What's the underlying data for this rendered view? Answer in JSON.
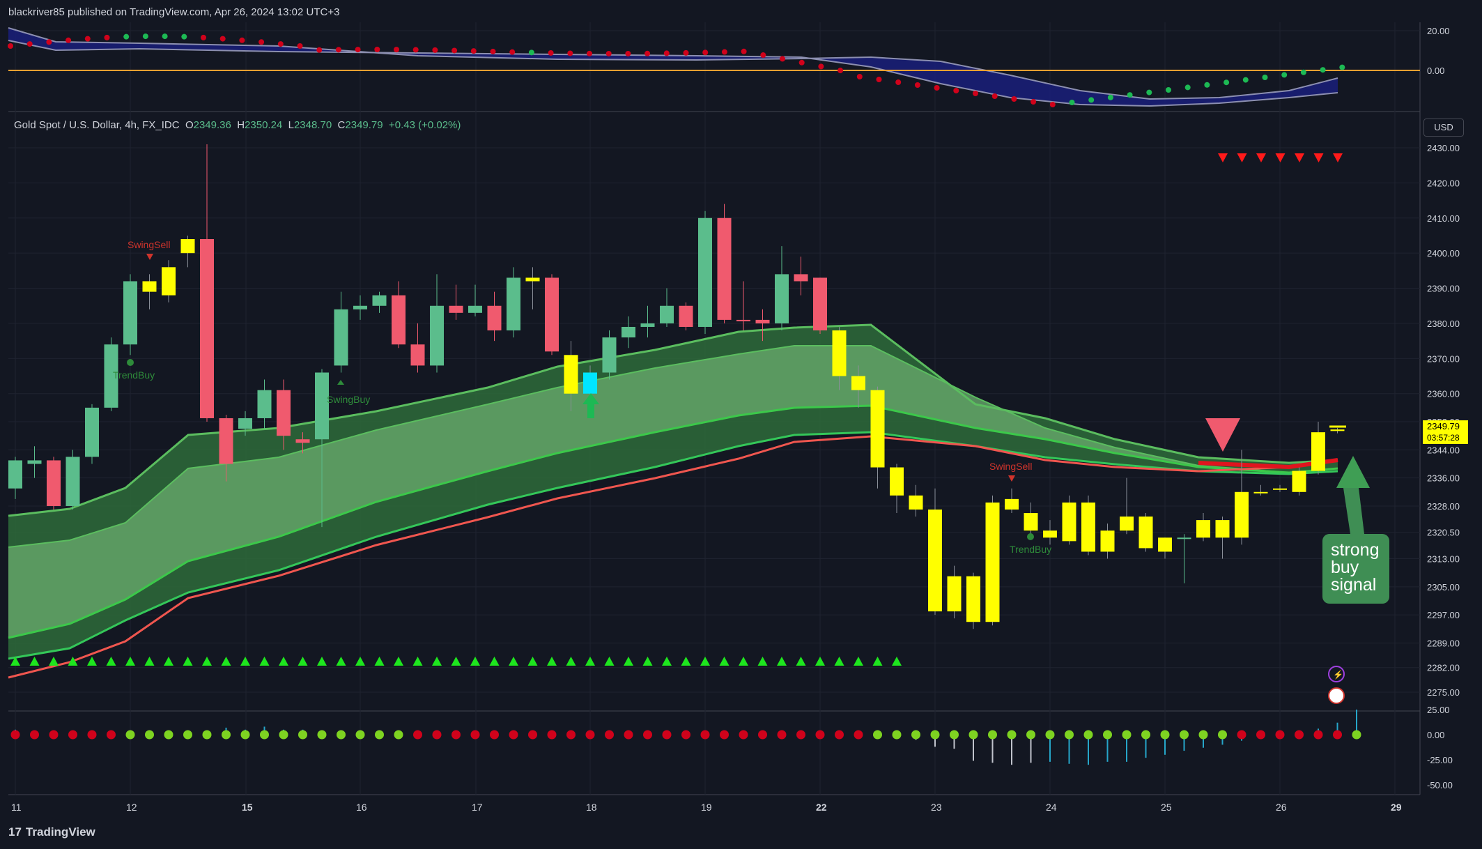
{
  "header": {
    "publish_line": "blackriver85 published on TradingView.com, Apr 26, 2024 13:02 UTC+3"
  },
  "symbol": {
    "name": "Gold Spot / U.S. Dollar, 4h, FX_IDC",
    "o_label": "O",
    "o": "2349.36",
    "h_label": "H",
    "h": "2350.24",
    "l_label": "L",
    "l": "2348.70",
    "c_label": "C",
    "c": "2349.79",
    "change": "+0.43 (+0.02%)"
  },
  "currency_button": "USD",
  "price_tag": {
    "price": "2349.79",
    "countdown": "03:57:28"
  },
  "annotation": {
    "lines": [
      "strong",
      "buy",
      "signal"
    ]
  },
  "footer": {
    "brand": "TradingView",
    "logo_glyph": "17"
  },
  "colors": {
    "up": "#5bbd8c",
    "down": "#f05a6e",
    "yellow": "#ffff00",
    "cyan": "#00e5ff",
    "band_light": "#66a86c",
    "band_dark": "#2e6b3a",
    "red_line": "#f0564f",
    "green_line": "#34c759",
    "background": "#131722"
  },
  "chart_data": [
    {
      "type": "candlestick",
      "title": "Gold Spot / U.S. Dollar, 4h, FX_IDC",
      "x_tick_labels": [
        "11",
        "12",
        "15",
        "16",
        "17",
        "18",
        "19",
        "22",
        "23",
        "24",
        "25",
        "26",
        "29"
      ],
      "y_tick_labels": [
        "2430.00",
        "2420.00",
        "2410.00",
        "2400.00",
        "2390.00",
        "2380.00",
        "2370.00",
        "2360.00",
        "2352.00",
        "2344.00",
        "2336.00",
        "2328.00",
        "2320.50",
        "2313.00",
        "2305.00",
        "2297.00",
        "2289.00",
        "2282.00",
        "2275.00"
      ],
      "ylim": [
        2272,
        2438
      ],
      "candles": [
        {
          "o": 2333,
          "h": 2342,
          "l": 2330,
          "c": 2341,
          "color": "up"
        },
        {
          "o": 2340,
          "h": 2345,
          "l": 2336,
          "c": 2341,
          "color": "up"
        },
        {
          "o": 2341,
          "h": 2342,
          "l": 2327,
          "c": 2328,
          "color": "down"
        },
        {
          "o": 2328,
          "h": 2344,
          "l": 2327,
          "c": 2342,
          "color": "up"
        },
        {
          "o": 2342,
          "h": 2357,
          "l": 2340,
          "c": 2356,
          "color": "up"
        },
        {
          "o": 2356,
          "h": 2376,
          "l": 2355,
          "c": 2374,
          "color": "up"
        },
        {
          "o": 2374,
          "h": 2394,
          "l": 2371,
          "c": 2392,
          "color": "up"
        },
        {
          "o": 2389,
          "h": 2394,
          "l": 2384,
          "c": 2392,
          "color": "yellow"
        },
        {
          "o": 2388,
          "h": 2398,
          "l": 2386,
          "c": 2396,
          "color": "yellow"
        },
        {
          "o": 2400,
          "h": 2405,
          "l": 2396,
          "c": 2404,
          "color": "yellow"
        },
        {
          "o": 2404,
          "h": 2431,
          "l": 2352,
          "c": 2353,
          "color": "down"
        },
        {
          "o": 2353,
          "h": 2354,
          "l": 2335,
          "c": 2340,
          "color": "down"
        },
        {
          "o": 2350,
          "h": 2355,
          "l": 2348,
          "c": 2353,
          "color": "up"
        },
        {
          "o": 2353,
          "h": 2364,
          "l": 2350,
          "c": 2361,
          "color": "up"
        },
        {
          "o": 2361,
          "h": 2364,
          "l": 2344,
          "c": 2348,
          "color": "down"
        },
        {
          "o": 2347,
          "h": 2349,
          "l": 2343,
          "c": 2346,
          "color": "down"
        },
        {
          "o": 2347,
          "h": 2367,
          "l": 2322,
          "c": 2366,
          "color": "up"
        },
        {
          "o": 2368,
          "h": 2389,
          "l": 2366,
          "c": 2384,
          "color": "up"
        },
        {
          "o": 2384,
          "h": 2388,
          "l": 2381,
          "c": 2385,
          "color": "up"
        },
        {
          "o": 2385,
          "h": 2389,
          "l": 2383,
          "c": 2388,
          "color": "up"
        },
        {
          "o": 2388,
          "h": 2392,
          "l": 2373,
          "c": 2374,
          "color": "down"
        },
        {
          "o": 2374,
          "h": 2380,
          "l": 2366,
          "c": 2368,
          "color": "down"
        },
        {
          "o": 2368,
          "h": 2394,
          "l": 2366,
          "c": 2385,
          "color": "up"
        },
        {
          "o": 2385,
          "h": 2391,
          "l": 2381,
          "c": 2383,
          "color": "down"
        },
        {
          "o": 2383,
          "h": 2391,
          "l": 2382,
          "c": 2385,
          "color": "up"
        },
        {
          "o": 2385,
          "h": 2389,
          "l": 2375,
          "c": 2378,
          "color": "down"
        },
        {
          "o": 2378,
          "h": 2396,
          "l": 2376,
          "c": 2393,
          "color": "up"
        },
        {
          "o": 2392,
          "h": 2396,
          "l": 2384,
          "c": 2393,
          "color": "yellow"
        },
        {
          "o": 2393,
          "h": 2394,
          "l": 2371,
          "c": 2372,
          "color": "down"
        },
        {
          "o": 2371,
          "h": 2375,
          "l": 2355,
          "c": 2360,
          "color": "yellow"
        },
        {
          "o": 2366,
          "h": 2368,
          "l": 2359,
          "c": 2360,
          "color": "cyan"
        },
        {
          "o": 2366,
          "h": 2378,
          "l": 2364,
          "c": 2376,
          "color": "up"
        },
        {
          "o": 2376,
          "h": 2382,
          "l": 2373,
          "c": 2379,
          "color": "up"
        },
        {
          "o": 2379,
          "h": 2385,
          "l": 2376,
          "c": 2380,
          "color": "up"
        },
        {
          "o": 2380,
          "h": 2390,
          "l": 2379,
          "c": 2385,
          "color": "up"
        },
        {
          "o": 2385,
          "h": 2386,
          "l": 2378,
          "c": 2379,
          "color": "down"
        },
        {
          "o": 2379,
          "h": 2412,
          "l": 2377,
          "c": 2410,
          "color": "up"
        },
        {
          "o": 2410,
          "h": 2414,
          "l": 2380,
          "c": 2381,
          "color": "down"
        },
        {
          "o": 2381,
          "h": 2392,
          "l": 2378,
          "c": 2381,
          "color": "down"
        },
        {
          "o": 2381,
          "h": 2384,
          "l": 2375,
          "c": 2380,
          "color": "down"
        },
        {
          "o": 2380,
          "h": 2402,
          "l": 2378,
          "c": 2394,
          "color": "up"
        },
        {
          "o": 2394,
          "h": 2399,
          "l": 2388,
          "c": 2392,
          "color": "down"
        },
        {
          "o": 2393,
          "h": 2393,
          "l": 2377,
          "c": 2378,
          "color": "down"
        },
        {
          "o": 2378,
          "h": 2379,
          "l": 2361,
          "c": 2365,
          "color": "yellow"
        },
        {
          "o": 2365,
          "h": 2368,
          "l": 2356,
          "c": 2361,
          "color": "yellow"
        },
        {
          "o": 2361,
          "h": 2362,
          "l": 2333,
          "c": 2339,
          "color": "yellow"
        },
        {
          "o": 2339,
          "h": 2340,
          "l": 2326,
          "c": 2331,
          "color": "yellow"
        },
        {
          "o": 2331,
          "h": 2334,
          "l": 2325,
          "c": 2327,
          "color": "yellow"
        },
        {
          "o": 2327,
          "h": 2333,
          "l": 2297,
          "c": 2298,
          "color": "yellow"
        },
        {
          "o": 2298,
          "h": 2311,
          "l": 2296,
          "c": 2308,
          "color": "yellow"
        },
        {
          "o": 2308,
          "h": 2309,
          "l": 2293,
          "c": 2295,
          "color": "yellow"
        },
        {
          "o": 2295,
          "h": 2331,
          "l": 2294,
          "c": 2329,
          "color": "yellow"
        },
        {
          "o": 2330,
          "h": 2333,
          "l": 2326,
          "c": 2327,
          "color": "yellow"
        },
        {
          "o": 2326,
          "h": 2329,
          "l": 2320,
          "c": 2321,
          "color": "yellow"
        },
        {
          "o": 2321,
          "h": 2324,
          "l": 2317,
          "c": 2319,
          "color": "yellow"
        },
        {
          "o": 2318,
          "h": 2331,
          "l": 2317,
          "c": 2329,
          "color": "yellow"
        },
        {
          "o": 2329,
          "h": 2331,
          "l": 2314,
          "c": 2315,
          "color": "yellow"
        },
        {
          "o": 2315,
          "h": 2323,
          "l": 2313,
          "c": 2321,
          "color": "yellow"
        },
        {
          "o": 2321,
          "h": 2336,
          "l": 2320,
          "c": 2325,
          "color": "yellow"
        },
        {
          "o": 2325,
          "h": 2326,
          "l": 2315,
          "c": 2316,
          "color": "yellow"
        },
        {
          "o": 2315,
          "h": 2319,
          "l": 2313,
          "c": 2319,
          "color": "yellow"
        },
        {
          "o": 2319,
          "h": 2320,
          "l": 2306,
          "c": 2319,
          "color": "up"
        },
        {
          "o": 2319,
          "h": 2326,
          "l": 2318,
          "c": 2324,
          "color": "yellow"
        },
        {
          "o": 2324,
          "h": 2325,
          "l": 2313,
          "c": 2319,
          "color": "yellow"
        },
        {
          "o": 2319,
          "h": 2344,
          "l": 2317,
          "c": 2332,
          "color": "yellow"
        },
        {
          "o": 2332,
          "h": 2334,
          "l": 2331,
          "c": 2332,
          "color": "yellow"
        },
        {
          "o": 2333,
          "h": 2334,
          "l": 2332,
          "c": 2333,
          "color": "yellow"
        },
        {
          "o": 2332,
          "h": 2339,
          "l": 2331,
          "c": 2338,
          "color": "yellow"
        },
        {
          "o": 2338,
          "h": 2352,
          "l": 2337,
          "c": 2349,
          "color": "yellow"
        },
        {
          "o": 2349.36,
          "h": 2350.24,
          "l": 2348.7,
          "c": 2349.79,
          "color": "yellow"
        }
      ],
      "text_labels": [
        {
          "text": "SwingSell",
          "bar": 7
        },
        {
          "text": "TrendBuy",
          "bar": 6
        },
        {
          "text": "SwingBuy",
          "bar": 17
        },
        {
          "text": "SwingSell",
          "bar": 52
        },
        {
          "text": "TrendBuy",
          "bar": 53
        }
      ],
      "current_price": 2349.79
    },
    {
      "type": "line",
      "panel": "upper oscillator",
      "y_tick_labels": [
        "20.00",
        "0.00"
      ],
      "zero_line_color": "#f0a030"
    },
    {
      "type": "bar",
      "panel": "lower histogram",
      "y_tick_labels": [
        "25.00",
        "0.00",
        "-25.00",
        "-50.00"
      ],
      "values": [
        5,
        4,
        2,
        2,
        1,
        2,
        1,
        1,
        -2,
        2,
        3,
        7,
        5,
        8,
        5,
        5,
        2,
        2,
        2,
        1,
        1,
        1,
        1,
        1,
        1,
        1,
        2,
        3,
        3,
        4,
        4,
        4,
        3,
        3,
        3,
        4,
        4,
        4,
        2,
        2,
        2,
        2,
        2,
        2,
        1,
        1,
        -2,
        -5,
        -12,
        -14,
        -26,
        -28,
        -30,
        -28,
        -27,
        -29,
        -30,
        -27,
        -27,
        -23,
        -20,
        -16,
        -13,
        -10,
        -6,
        -2,
        2,
        4,
        6,
        12,
        25
      ],
      "ylim": [
        -55,
        28
      ]
    }
  ]
}
